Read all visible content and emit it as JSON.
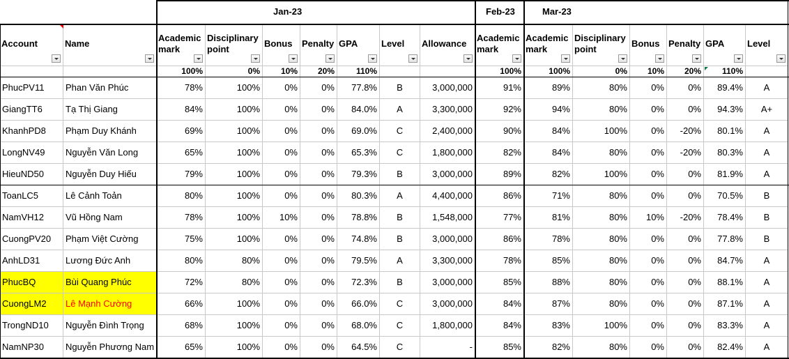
{
  "months": {
    "jan": "Jan-23",
    "feb": "Feb-23",
    "mar": "Mar-23"
  },
  "headers": [
    "Account",
    "Name",
    "Academic\nmark",
    "Disciplinary\npoint",
    "Bonus",
    "Penalty",
    "GPA",
    "Level",
    "Allowance",
    "Academic\nmark",
    "Academic\nmark",
    "Disciplinary\npoint",
    "Bonus",
    "Penalty",
    "GPA",
    "Level"
  ],
  "weights": [
    "",
    "",
    "100%",
    "0%",
    "10%",
    "20%",
    "110%",
    "",
    "",
    "100%",
    "100%",
    "0%",
    "10%",
    "20%",
    "110%",
    ""
  ],
  "rows": [
    [
      "PhucPV11",
      "Phan Văn Phúc",
      "78%",
      "100%",
      "0%",
      "0%",
      "77.8%",
      "B",
      "3,000,000",
      "91%",
      "89%",
      "80%",
      "0%",
      "0%",
      "89.4%",
      "A"
    ],
    [
      "GiangTT6",
      "Tạ Thị Giang",
      "84%",
      "100%",
      "0%",
      "0%",
      "84.0%",
      "A",
      "3,300,000",
      "92%",
      "94%",
      "80%",
      "0%",
      "0%",
      "94.3%",
      "A+"
    ],
    [
      "KhanhPD8",
      "Phạm Duy Khánh",
      "69%",
      "100%",
      "0%",
      "0%",
      "69.0%",
      "C",
      "2,400,000",
      "90%",
      "84%",
      "100%",
      "0%",
      "-20%",
      "80.1%",
      "A"
    ],
    [
      "LongNV49",
      "Nguyễn Văn Long",
      "65%",
      "100%",
      "0%",
      "0%",
      "65.3%",
      "C",
      "1,800,000",
      "82%",
      "84%",
      "80%",
      "0%",
      "-20%",
      "80.3%",
      "A"
    ],
    [
      "HieuND50",
      "Nguyễn Duy Hiếu",
      "79%",
      "100%",
      "0%",
      "0%",
      "79.3%",
      "B",
      "3,000,000",
      "89%",
      "82%",
      "100%",
      "0%",
      "0%",
      "81.9%",
      "A"
    ],
    [
      "ToanLC5",
      "Lê Cảnh Toản",
      "80%",
      "100%",
      "0%",
      "0%",
      "80.3%",
      "A",
      "4,400,000",
      "86%",
      "71%",
      "80%",
      "0%",
      "0%",
      "70.5%",
      "B"
    ],
    [
      "NamVH12",
      "Vũ Hồng Nam",
      "78%",
      "100%",
      "10%",
      "0%",
      "78.8%",
      "B",
      "1,548,000",
      "77%",
      "81%",
      "80%",
      "10%",
      "-20%",
      "78.4%",
      "B"
    ],
    [
      "CuongPV20",
      "Phạm Việt Cường",
      "75%",
      "100%",
      "0%",
      "0%",
      "74.8%",
      "B",
      "3,000,000",
      "86%",
      "78%",
      "80%",
      "0%",
      "0%",
      "77.8%",
      "B"
    ],
    [
      "AnhLD31",
      "Lương Đức Anh",
      "80%",
      "80%",
      "0%",
      "0%",
      "79.5%",
      "A",
      "3,300,000",
      "78%",
      "85%",
      "80%",
      "0%",
      "0%",
      "84.7%",
      "A"
    ],
    [
      "PhucBQ",
      "Bùi Quang Phúc",
      "72%",
      "80%",
      "0%",
      "0%",
      "72.3%",
      "B",
      "3,000,000",
      "85%",
      "88%",
      "80%",
      "0%",
      "0%",
      "88.1%",
      "A"
    ],
    [
      "CuongLM2",
      "Lê Mạnh Cường",
      "66%",
      "100%",
      "0%",
      "0%",
      "66.0%",
      "C",
      "3,000,000",
      "84%",
      "87%",
      "80%",
      "0%",
      "0%",
      "87.1%",
      "A"
    ],
    [
      "TrongND10",
      "Nguyễn Đình Trọng",
      "68%",
      "100%",
      "0%",
      "0%",
      "68.0%",
      "C",
      "1,800,000",
      "84%",
      "83%",
      "100%",
      "0%",
      "0%",
      "83.3%",
      "A"
    ],
    [
      "NamNP30",
      "Nguyễn Phương Nam",
      "65%",
      "100%",
      "0%",
      "0%",
      "64.5%",
      "C",
      "-",
      "85%",
      "82%",
      "80%",
      "0%",
      "0%",
      "82.4%",
      "A"
    ]
  ],
  "highlight": {
    "yellow_fill": "#ffff00",
    "red_text": "#ff0000",
    "highlighted_rows": [
      "PhucBQ",
      "CuongLM2"
    ],
    "red_name_row": "CuongLM2"
  },
  "filter_icon": "dropdown-filter-icon"
}
